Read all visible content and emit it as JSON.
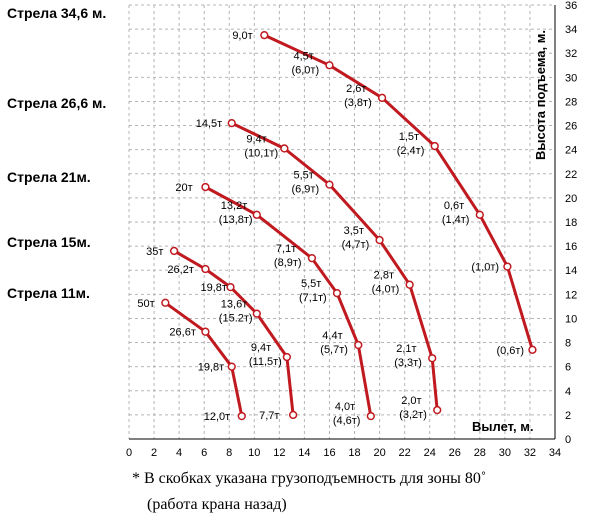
{
  "chart_data": {
    "type": "line",
    "xlabel": "Вылет, м.",
    "ylabel": "Высота подъема, м.",
    "xlim": [
      0,
      34
    ],
    "ylim": [
      0,
      36
    ],
    "x_ticks": [
      0,
      2,
      4,
      6,
      8,
      10,
      12,
      14,
      16,
      18,
      20,
      22,
      24,
      26,
      28,
      30,
      32,
      34
    ],
    "y_ticks": [
      0,
      2,
      4,
      6,
      8,
      10,
      12,
      14,
      16,
      18,
      20,
      22,
      24,
      26,
      28,
      30,
      32,
      34,
      36
    ],
    "grid": true,
    "line_color": "#c0191f",
    "series": [
      {
        "name": "Стрела 34,6 м.",
        "points": [
          {
            "x": 10.8,
            "y": 33.5,
            "label": "9,0т"
          },
          {
            "x": 16.0,
            "y": 31.0,
            "label": "4,5т",
            "label2": "(6,0т)"
          },
          {
            "x": 20.2,
            "y": 28.3,
            "label": "2,6т",
            "label2": "(3,8т)"
          },
          {
            "x": 24.4,
            "y": 24.3,
            "label": "1,5т",
            "label2": "(2,4т)"
          },
          {
            "x": 28.0,
            "y": 18.6,
            "label": "0,6т",
            "label2": "(1,4т)"
          },
          {
            "x": 30.2,
            "y": 14.3,
            "label": "(1,0т)"
          },
          {
            "x": 32.2,
            "y": 7.4,
            "label": "(0,6т)"
          }
        ]
      },
      {
        "name": "Стрела 26,6 м.",
        "points": [
          {
            "x": 8.2,
            "y": 26.2,
            "label": "14,5т"
          },
          {
            "x": 12.4,
            "y": 24.1,
            "label": "9,4т",
            "label2": "(10,1т)"
          },
          {
            "x": 16.0,
            "y": 21.1,
            "label": "5,5т",
            "label2": "(6,9т)"
          },
          {
            "x": 20.0,
            "y": 16.5,
            "label": "3,5т",
            "label2": "(4,7т)"
          },
          {
            "x": 22.4,
            "y": 12.8,
            "label": "2,8т",
            "label2": "(4,0т)"
          },
          {
            "x": 24.2,
            "y": 6.7,
            "label": "2,1т",
            "label2": "(3,3т)"
          },
          {
            "x": 24.6,
            "y": 2.4,
            "label": "2,0т",
            "label2": "(3,2т)"
          }
        ]
      },
      {
        "name": "Стрела 21м.",
        "points": [
          {
            "x": 6.1,
            "y": 20.9,
            "label": "20т"
          },
          {
            "x": 10.2,
            "y": 18.6,
            "label": "13,2т",
            "label2": "(13,8т)"
          },
          {
            "x": 14.6,
            "y": 15.0,
            "label": "7,1т",
            "label2": "(8,9т)"
          },
          {
            "x": 16.6,
            "y": 12.1,
            "label": "5,5т",
            "label2": "(7,1т)"
          },
          {
            "x": 18.3,
            "y": 7.8,
            "label": "4,4т",
            "label2": "(5,7т)"
          },
          {
            "x": 19.3,
            "y": 1.9,
            "label": "4,0т",
            "label2": "(4,6т)"
          }
        ]
      },
      {
        "name": "Стрела 15м.",
        "points": [
          {
            "x": 3.6,
            "y": 15.6,
            "label": "35т"
          },
          {
            "x": 6.1,
            "y": 14.1,
            "label": "26,2т"
          },
          {
            "x": 8.1,
            "y": 12.6,
            "label": "19,8т"
          },
          {
            "x": 10.2,
            "y": 10.4,
            "label": "13,6т",
            "label2": "(15.2т)"
          },
          {
            "x": 12.6,
            "y": 6.8,
            "label": "9,4т",
            "label2": "(11,5т)"
          },
          {
            "x": 13.1,
            "y": 2.0,
            "label": "7,7т"
          }
        ]
      },
      {
        "name": "Стрела 11м.",
        "points": [
          {
            "x": 2.9,
            "y": 11.3,
            "label": "50т"
          },
          {
            "x": 6.1,
            "y": 8.9,
            "label": "26,6т"
          },
          {
            "x": 8.2,
            "y": 6.0,
            "label": "19,8т"
          },
          {
            "x": 9.0,
            "y": 1.9,
            "label": "12,0т"
          }
        ]
      }
    ]
  },
  "footnote": {
    "line1": "* В скобках указана грузоподъемность для зоны 80˚",
    "line2": "(работа крана назад)"
  }
}
